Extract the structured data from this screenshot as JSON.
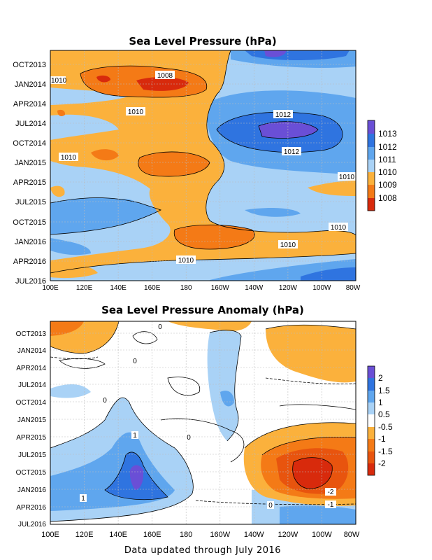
{
  "footer": "Data updated through July 2016",
  "chart_data": [
    {
      "type": "heatmap",
      "title": "Sea Level Pressure (hPa)",
      "x_tick_labels": [
        "100E",
        "120E",
        "140E",
        "160E",
        "180",
        "160W",
        "140W",
        "120W",
        "100W",
        "80W"
      ],
      "y_tick_labels": [
        "OCT2013",
        "JAN2014",
        "APR2014",
        "JUL2014",
        "OCT2014",
        "JAN2015",
        "APR2015",
        "JUL2015",
        "OCT2015",
        "JAN2016",
        "APR2016",
        "JUL2016"
      ],
      "colorbar": {
        "labels": [
          "1013",
          "1012",
          "1011",
          "1010",
          "1009",
          "1008"
        ],
        "colors": [
          "#6a4fd6",
          "#2f74e0",
          "#5fa6ee",
          "#a9d2f6",
          "#fbb13c",
          "#f47a16",
          "#d82a0c"
        ]
      },
      "contour_labels": [
        "1010",
        "1008",
        "1010",
        "1012",
        "1012",
        "1010",
        "1010",
        "1010",
        "1010",
        "1010"
      ],
      "grid": true
    },
    {
      "type": "heatmap",
      "title": "Sea Level Pressure Anomaly (hPa)",
      "x_tick_labels": [
        "100E",
        "120E",
        "140E",
        "160E",
        "180",
        "160W",
        "140W",
        "120W",
        "100W",
        "80W"
      ],
      "y_tick_labels": [
        "OCT2013",
        "JAN2014",
        "APR2014",
        "JUL2014",
        "OCT2014",
        "JAN2015",
        "APR2015",
        "JUL2015",
        "OCT2015",
        "JAN2016",
        "APR2016",
        "JUL2016"
      ],
      "colorbar": {
        "labels": [
          "2",
          "1.5",
          "1",
          "0.5",
          "-0.5",
          "-1",
          "-1.5",
          "-2"
        ],
        "colors": [
          "#6a4fd6",
          "#2f74e0",
          "#5fa6ee",
          "#a9d2f6",
          "#ffffff",
          "#fbb13c",
          "#f47a16",
          "#e8540e",
          "#d82a0c"
        ]
      },
      "contour_labels": [
        "0",
        "0",
        "0",
        "1",
        "0",
        "1",
        "-2",
        "-1",
        "0"
      ],
      "grid": true
    }
  ]
}
